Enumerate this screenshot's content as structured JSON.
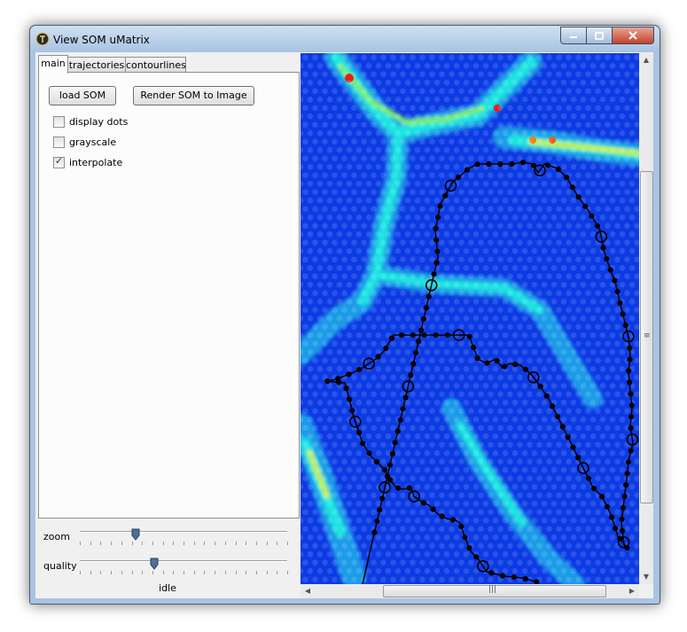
{
  "window": {
    "title": "View SOM uMatrix",
    "controls": [
      "minimize",
      "maximize",
      "close"
    ]
  },
  "tabs": [
    {
      "label": "main"
    },
    {
      "label": "trajectories"
    },
    {
      "label": "contourlines"
    }
  ],
  "main_tab": {
    "buttons": {
      "load": "load SOM",
      "render": "Render SOM to Image"
    },
    "checkboxes": [
      {
        "label": "display dots",
        "checked": false
      },
      {
        "label": "grayscale",
        "checked": false
      },
      {
        "label": "interpolate",
        "checked": true
      }
    ]
  },
  "sliders": {
    "zoom": {
      "label": "zoom",
      "value_fraction": 0.27
    },
    "quality": {
      "label": "quality",
      "value_fraction": 0.36
    }
  },
  "status": "idle",
  "view": {
    "content": "U-matrix heat map with trajectory overlay",
    "colors": {
      "low": "#0a32e6",
      "mid": "#00e0f0",
      "high": "#e81e10",
      "trajectory": "#000000"
    }
  },
  "icons": {
    "app": "app-logo-icon",
    "scroll_up": "scroll-up-arrow-icon",
    "scroll_down": "scroll-down-arrow-icon",
    "scroll_left": "scroll-left-arrow-icon",
    "scroll_right": "scroll-right-arrow-icon"
  }
}
